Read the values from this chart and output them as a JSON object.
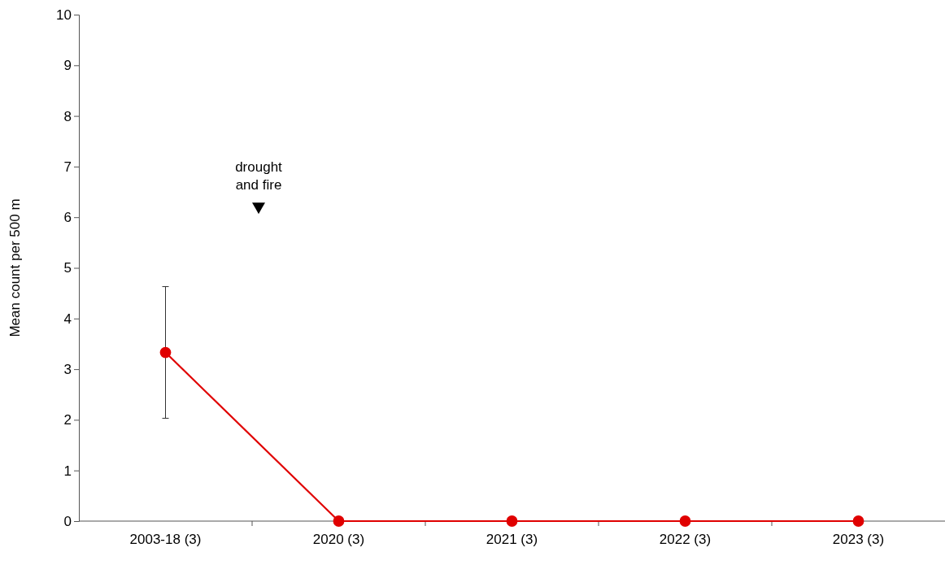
{
  "chart_data": {
    "type": "line",
    "ylabel": "Mean count per 500 m",
    "categories": [
      "2003-18 (3)",
      "2020 (3)",
      "2021 (3)",
      "2022 (3)",
      "2023 (3)"
    ],
    "series": [
      {
        "color": "#e00000",
        "values": [
          3.33,
          0,
          0,
          0,
          0
        ],
        "errors": [
          [
            2.03,
            4.63
          ],
          null,
          null,
          null,
          null
        ]
      }
    ],
    "ylim": [
      0,
      10
    ],
    "yticks": [
      0,
      1,
      2,
      3,
      4,
      5,
      6,
      7,
      8,
      9,
      10
    ],
    "annotations": [
      "drought and fire"
    ],
    "grid": false,
    "marker": "circle",
    "line_style": "solid"
  }
}
